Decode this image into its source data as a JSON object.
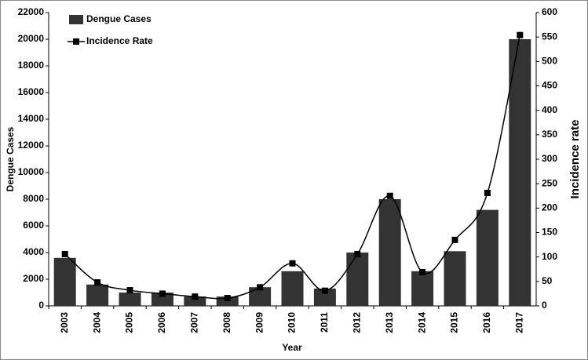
{
  "chart_data": {
    "type": "combo",
    "categories": [
      "2003",
      "2004",
      "2005",
      "2006",
      "2007",
      "2008",
      "2009",
      "2010",
      "2011",
      "2012",
      "2013",
      "2014",
      "2015",
      "2016",
      "2017"
    ],
    "series": [
      {
        "name": "Dengue Cases",
        "type": "bar",
        "color": "#333333",
        "values": [
          3600,
          1600,
          1000,
          1000,
          700,
          700,
          1400,
          2600,
          1300,
          4000,
          8000,
          2600,
          4100,
          7200,
          20000
        ]
      },
      {
        "name": "Incidence Rate",
        "type": "line",
        "color": "#000000",
        "axis": "y2",
        "values": [
          106,
          48,
          32,
          25,
          19,
          16,
          38,
          87,
          31,
          106,
          225,
          69,
          135,
          231,
          554
        ]
      }
    ],
    "xlabel": "Year",
    "ylabel": "Dengue Cases",
    "y2label": "Incidence rate",
    "ylim": [
      0,
      22000
    ],
    "yticks": [
      0,
      2000,
      4000,
      6000,
      8000,
      10000,
      12000,
      14000,
      16000,
      18000,
      20000,
      22000
    ],
    "y2lim": [
      0,
      600
    ],
    "y2ticks": [
      0,
      50,
      100,
      150,
      200,
      250,
      300,
      350,
      400,
      450,
      500,
      550,
      600
    ],
    "legend": "top-left",
    "smooth": true
  }
}
